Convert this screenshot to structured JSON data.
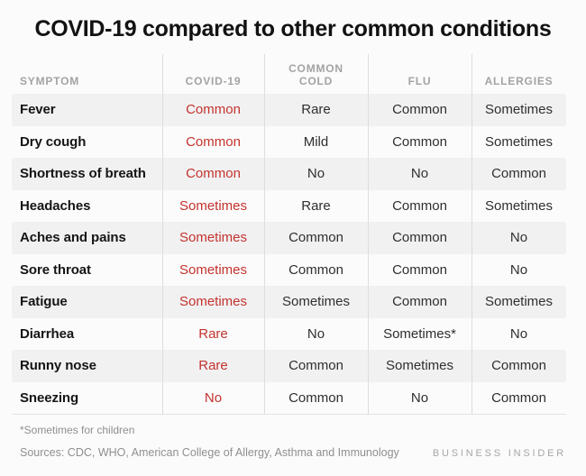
{
  "title": "COVID-19 compared to other common conditions",
  "chart_data": {
    "type": "table",
    "title": "COVID-19 compared to other common conditions",
    "columns": [
      {
        "key": "symptom",
        "label": "SYMPTOM"
      },
      {
        "key": "covid",
        "label": "COVID-19"
      },
      {
        "key": "cold",
        "label": "COMMON\nCOLD"
      },
      {
        "key": "flu",
        "label": "FLU"
      },
      {
        "key": "allergies",
        "label": "ALLERGIES"
      }
    ],
    "highlight_column": "covid",
    "highlight_color": "#c4332e",
    "rows": [
      {
        "symptom": "Fever",
        "covid": "Common",
        "cold": "Rare",
        "flu": "Common",
        "allergies": "Sometimes"
      },
      {
        "symptom": "Dry cough",
        "covid": "Common",
        "cold": "Mild",
        "flu": "Common",
        "allergies": "Sometimes"
      },
      {
        "symptom": "Shortness of breath",
        "covid": "Common",
        "cold": "No",
        "flu": "No",
        "allergies": "Common"
      },
      {
        "symptom": "Headaches",
        "covid": "Sometimes",
        "cold": "Rare",
        "flu": "Common",
        "allergies": "Sometimes"
      },
      {
        "symptom": "Aches and pains",
        "covid": "Sometimes",
        "cold": "Common",
        "flu": "Common",
        "allergies": "No"
      },
      {
        "symptom": "Sore throat",
        "covid": "Sometimes",
        "cold": "Common",
        "flu": "Common",
        "allergies": "No"
      },
      {
        "symptom": "Fatigue",
        "covid": "Sometimes",
        "cold": "Sometimes",
        "flu": "Common",
        "allergies": "Sometimes"
      },
      {
        "symptom": "Diarrhea",
        "covid": "Rare",
        "cold": "No",
        "flu": "Sometimes*",
        "allergies": "No"
      },
      {
        "symptom": "Runny nose",
        "covid": "Rare",
        "cold": "Common",
        "flu": "Sometimes",
        "allergies": "Common"
      },
      {
        "symptom": "Sneezing",
        "covid": "No",
        "cold": "Common",
        "flu": "No",
        "allergies": "Common"
      }
    ],
    "footnote": "*Sometimes for children",
    "sources": "Sources: CDC, WHO,  American College of Allergy, Asthma and Immunology",
    "brand": "BUSINESS INSIDER"
  },
  "colors": {
    "background": "#fbfbfb",
    "row_alt": "#f1f1f2",
    "divider": "#dddddd",
    "header_text": "#a3a3a3",
    "body_text": "#2f2f2f",
    "footer_text": "#8f8f8f"
  }
}
